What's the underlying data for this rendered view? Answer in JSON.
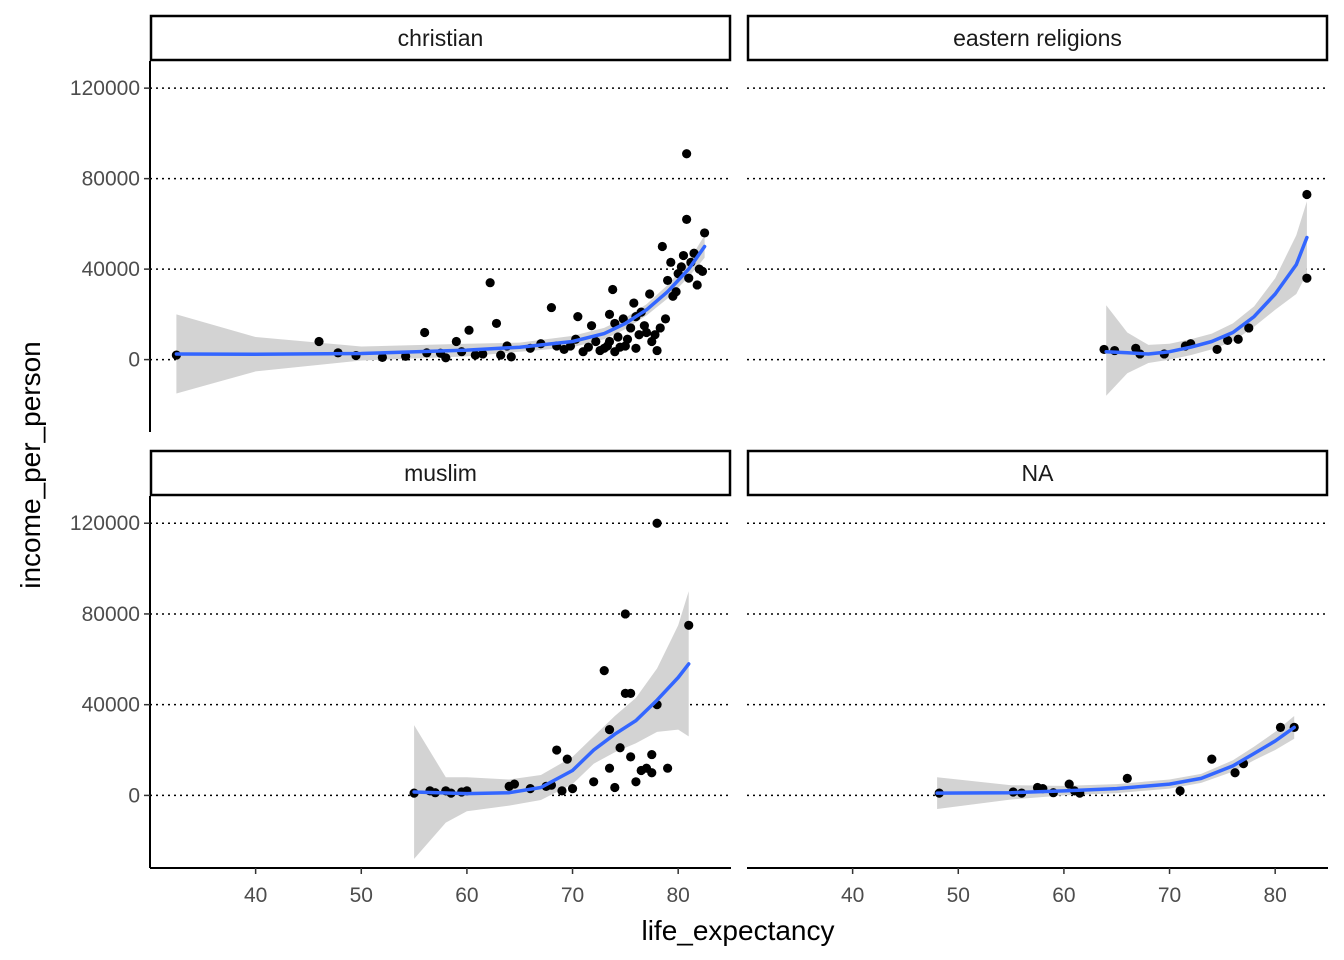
{
  "chart_data": {
    "type": "scatter",
    "xlabel": "life_expectancy",
    "ylabel": "income_per_person",
    "xlim": [
      30,
      85
    ],
    "ylim": [
      -32000,
      132000
    ],
    "x_ticks": [
      40,
      50,
      60,
      70,
      80
    ],
    "y_ticks": [
      0,
      40000,
      80000,
      120000
    ],
    "grid": "horizontal dotted major gridlines",
    "smooth": "loess with confidence band",
    "colors": {
      "points": "#000000",
      "smooth_line": "#3366FF",
      "band": "#d3d3d3",
      "grid": "#000000"
    },
    "facets": [
      {
        "label": "christian",
        "points": [
          [
            32.5,
            2000
          ],
          [
            46,
            8000
          ],
          [
            47.8,
            3000
          ],
          [
            49.5,
            1800
          ],
          [
            52,
            1000
          ],
          [
            54.2,
            1500
          ],
          [
            56,
            12000
          ],
          [
            56.2,
            3000
          ],
          [
            57.5,
            2800
          ],
          [
            58,
            800
          ],
          [
            59,
            8000
          ],
          [
            59.5,
            3500
          ],
          [
            60.2,
            13000
          ],
          [
            60.8,
            2000
          ],
          [
            61.5,
            2500
          ],
          [
            62.2,
            34000
          ],
          [
            62.8,
            16000
          ],
          [
            63.2,
            2000
          ],
          [
            63.8,
            6000
          ],
          [
            64.2,
            1200
          ],
          [
            66,
            5000
          ],
          [
            67,
            7000
          ],
          [
            68,
            23000
          ],
          [
            68.5,
            6000
          ],
          [
            69.2,
            4500
          ],
          [
            69.8,
            6000
          ],
          [
            70.3,
            9000
          ],
          [
            70.5,
            19000
          ],
          [
            71,
            3500
          ],
          [
            71.5,
            5500
          ],
          [
            71.8,
            15000
          ],
          [
            72.2,
            8000
          ],
          [
            72.6,
            4000
          ],
          [
            73,
            5000
          ],
          [
            73.3,
            6000
          ],
          [
            73.5,
            8000
          ],
          [
            73.5,
            20000
          ],
          [
            73.8,
            31000
          ],
          [
            74,
            3500
          ],
          [
            74,
            16000
          ],
          [
            74.3,
            10000
          ],
          [
            74.5,
            5500
          ],
          [
            74.8,
            18000
          ],
          [
            75,
            6000
          ],
          [
            75.2,
            9000
          ],
          [
            75.5,
            14000
          ],
          [
            75.8,
            25000
          ],
          [
            76,
            5000
          ],
          [
            76,
            19000
          ],
          [
            76.3,
            11000
          ],
          [
            76.5,
            21000
          ],
          [
            76.8,
            15000
          ],
          [
            77,
            12000
          ],
          [
            77.3,
            29000
          ],
          [
            77.5,
            8000
          ],
          [
            77.8,
            11000
          ],
          [
            78,
            4000
          ],
          [
            78.3,
            14000
          ],
          [
            78.5,
            50000
          ],
          [
            78.8,
            18000
          ],
          [
            79,
            35000
          ],
          [
            79.3,
            43000
          ],
          [
            79.5,
            28000
          ],
          [
            79.8,
            30000
          ],
          [
            80,
            38000
          ],
          [
            80.3,
            41000
          ],
          [
            80.5,
            46000
          ],
          [
            80.8,
            91000
          ],
          [
            80.8,
            62000
          ],
          [
            81,
            36000
          ],
          [
            81.2,
            43000
          ],
          [
            81.5,
            47000
          ],
          [
            81.8,
            33000
          ],
          [
            82,
            40000
          ],
          [
            82.3,
            39000
          ],
          [
            82.5,
            56000
          ]
        ],
        "smooth": [
          [
            32.5,
            2500
          ],
          [
            40,
            2400
          ],
          [
            50,
            2700
          ],
          [
            60,
            4200
          ],
          [
            65,
            5500
          ],
          [
            70,
            8000
          ],
          [
            73,
            11500
          ],
          [
            75,
            16000
          ],
          [
            77,
            22000
          ],
          [
            79,
            30000
          ],
          [
            81,
            40000
          ],
          [
            82.5,
            50000
          ]
        ],
        "band": {
          "upper": [
            [
              32.5,
              20000
            ],
            [
              40,
              10000
            ],
            [
              50,
              5800
            ],
            [
              60,
              7000
            ],
            [
              65,
              7500
            ],
            [
              70,
              10500
            ],
            [
              73,
              14000
            ],
            [
              75,
              18500
            ],
            [
              77,
              24500
            ],
            [
              79,
              33000
            ],
            [
              81,
              43500
            ],
            [
              82.5,
              55000
            ]
          ],
          "lower": [
            [
              32.5,
              -15000
            ],
            [
              40,
              -5200
            ],
            [
              50,
              -400
            ],
            [
              60,
              1400
            ],
            [
              65,
              3500
            ],
            [
              70,
              5500
            ],
            [
              73,
              9000
            ],
            [
              75,
              13500
            ],
            [
              77,
              19500
            ],
            [
              79,
              27000
            ],
            [
              81,
              36500
            ],
            [
              82.5,
              45000
            ]
          ]
        }
      },
      {
        "label": "eastern religions",
        "points": [
          [
            63.8,
            4500
          ],
          [
            64.8,
            4000
          ],
          [
            66.8,
            5000
          ],
          [
            67.2,
            2500
          ],
          [
            69.5,
            2500
          ],
          [
            71.5,
            6000
          ],
          [
            72,
            7000
          ],
          [
            74.5,
            4500
          ],
          [
            75.5,
            8500
          ],
          [
            76.5,
            9000
          ],
          [
            77.5,
            14000
          ],
          [
            83,
            73000
          ],
          [
            83,
            36000
          ]
        ],
        "smooth": [
          [
            64,
            3500
          ],
          [
            66,
            3000
          ],
          [
            68,
            2500
          ],
          [
            70,
            3500
          ],
          [
            72,
            5500
          ],
          [
            74,
            8000
          ],
          [
            76,
            12000
          ],
          [
            78,
            19000
          ],
          [
            80,
            29000
          ],
          [
            82,
            42000
          ],
          [
            83,
            54000
          ]
        ],
        "band": {
          "upper": [
            [
              64,
              24000
            ],
            [
              66,
              12000
            ],
            [
              68,
              6500
            ],
            [
              70,
              7000
            ],
            [
              72,
              9000
            ],
            [
              74,
              11500
            ],
            [
              76,
              16000
            ],
            [
              78,
              23500
            ],
            [
              80,
              36000
            ],
            [
              82,
              55000
            ],
            [
              83,
              70000
            ]
          ],
          "lower": [
            [
              64,
              -16000
            ],
            [
              66,
              -6000
            ],
            [
              68,
              -1500
            ],
            [
              70,
              0
            ],
            [
              72,
              2000
            ],
            [
              74,
              4500
            ],
            [
              76,
              8000
            ],
            [
              78,
              14500
            ],
            [
              80,
              22000
            ],
            [
              82,
              29000
            ],
            [
              83,
              38000
            ]
          ]
        }
      },
      {
        "label": "muslim",
        "points": [
          [
            55,
            1000
          ],
          [
            56.5,
            2000
          ],
          [
            57,
            1200
          ],
          [
            58,
            2000
          ],
          [
            58.5,
            1000
          ],
          [
            59.5,
            1500
          ],
          [
            60,
            2000
          ],
          [
            64,
            4000
          ],
          [
            64.5,
            5000
          ],
          [
            66,
            3000
          ],
          [
            67.5,
            4000
          ],
          [
            68,
            4500
          ],
          [
            68.5,
            20000
          ],
          [
            69,
            2000
          ],
          [
            69.5,
            16000
          ],
          [
            70,
            3000
          ],
          [
            72,
            6000
          ],
          [
            73,
            55000
          ],
          [
            73.5,
            12000
          ],
          [
            73.5,
            29000
          ],
          [
            74,
            3500
          ],
          [
            74.5,
            21000
          ],
          [
            75,
            80000
          ],
          [
            75,
            45000
          ],
          [
            75.5,
            45000
          ],
          [
            75.5,
            17000
          ],
          [
            76,
            6000
          ],
          [
            76.5,
            11000
          ],
          [
            77,
            12000
          ],
          [
            77.5,
            10000
          ],
          [
            77.5,
            18000
          ],
          [
            78,
            120000
          ],
          [
            78,
            40000
          ],
          [
            79,
            12000
          ],
          [
            81,
            75000
          ]
        ],
        "smooth": [
          [
            55,
            1500
          ],
          [
            60,
            800
          ],
          [
            64,
            1200
          ],
          [
            67,
            3500
          ],
          [
            70,
            11000
          ],
          [
            72,
            20000
          ],
          [
            74,
            27000
          ],
          [
            76,
            33000
          ],
          [
            78,
            42000
          ],
          [
            80,
            52000
          ],
          [
            81,
            58000
          ]
        ],
        "band": {
          "upper": [
            [
              55,
              31000
            ],
            [
              58,
              8000
            ],
            [
              60,
              8000
            ],
            [
              64,
              7000
            ],
            [
              67,
              9000
            ],
            [
              70,
              17000
            ],
            [
              72,
              26000
            ],
            [
              74,
              35000
            ],
            [
              76,
              43000
            ],
            [
              78,
              56000
            ],
            [
              80,
              75000
            ],
            [
              81,
              90000
            ]
          ],
          "lower": [
            [
              55,
              -28000
            ],
            [
              58,
              -12000
            ],
            [
              60,
              -7000
            ],
            [
              64,
              -4500
            ],
            [
              67,
              -2000
            ],
            [
              70,
              5000
            ],
            [
              72,
              14000
            ],
            [
              74,
              19000
            ],
            [
              76,
              23000
            ],
            [
              78,
              28000
            ],
            [
              80,
              29000
            ],
            [
              81,
              26000
            ]
          ]
        }
      },
      {
        "label": "NA",
        "points": [
          [
            48.2,
            1000
          ],
          [
            55.2,
            1500
          ],
          [
            56,
            1000
          ],
          [
            57.5,
            3500
          ],
          [
            58,
            3000
          ],
          [
            59,
            1200
          ],
          [
            60.5,
            5000
          ],
          [
            61,
            2000
          ],
          [
            61.5,
            1000
          ],
          [
            66,
            7500
          ],
          [
            71,
            2000
          ],
          [
            74,
            16000
          ],
          [
            76.2,
            10000
          ],
          [
            77,
            14000
          ],
          [
            80.5,
            30000
          ],
          [
            81.8,
            30000
          ]
        ],
        "smooth": [
          [
            48,
            1000
          ],
          [
            55,
            1200
          ],
          [
            60,
            2000
          ],
          [
            65,
            3000
          ],
          [
            70,
            5000
          ],
          [
            73,
            7500
          ],
          [
            76,
            13000
          ],
          [
            78,
            18500
          ],
          [
            80,
            24000
          ],
          [
            81.8,
            30000
          ]
        ],
        "band": {
          "upper": [
            [
              48,
              8000
            ],
            [
              55,
              4500
            ],
            [
              60,
              4200
            ],
            [
              65,
              5000
            ],
            [
              70,
              7000
            ],
            [
              73,
              9500
            ],
            [
              76,
              15500
            ],
            [
              78,
              21500
            ],
            [
              80,
              28000
            ],
            [
              81.8,
              35000
            ]
          ],
          "lower": [
            [
              48,
              -6000
            ],
            [
              55,
              -1800
            ],
            [
              60,
              0
            ],
            [
              65,
              1000
            ],
            [
              70,
              3000
            ],
            [
              73,
              5500
            ],
            [
              76,
              10500
            ],
            [
              78,
              15500
            ],
            [
              80,
              20000
            ],
            [
              81.8,
              25000
            ]
          ]
        }
      }
    ]
  }
}
